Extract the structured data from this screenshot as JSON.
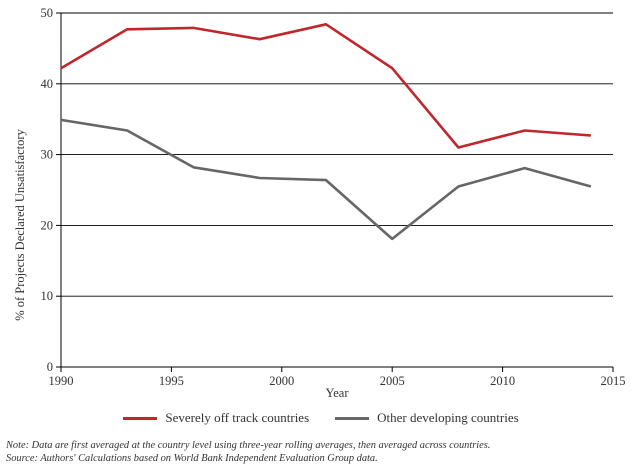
{
  "chart_data": {
    "type": "line",
    "title": "",
    "xlabel": "Year",
    "ylabel": "% of Projects Declared Unsatisfactory",
    "xlim": [
      1990,
      2015
    ],
    "ylim": [
      0,
      50
    ],
    "xticks": [
      1990,
      1995,
      2000,
      2005,
      2010,
      2015
    ],
    "yticks": [
      0,
      10,
      20,
      30,
      40,
      50
    ],
    "grid": "horizontal",
    "legend_position": "bottom",
    "series": [
      {
        "name": "Severely off track countries",
        "color": "#c0272d",
        "x": [
          1990,
          1993,
          1996,
          1999,
          2002,
          2005,
          2008,
          2011,
          2014
        ],
        "values": [
          42.2,
          47.7,
          47.9,
          46.3,
          48.4,
          42.2,
          31.0,
          33.4,
          32.7
        ]
      },
      {
        "name": "Other developing countries",
        "color": "#666666",
        "x": [
          1990,
          1993,
          1996,
          1999,
          2002,
          2005,
          2008,
          2011,
          2014
        ],
        "values": [
          34.9,
          33.4,
          28.2,
          26.7,
          26.4,
          18.1,
          25.5,
          28.1,
          25.5
        ]
      }
    ]
  },
  "notes": {
    "note": "Note: Data are first averaged at the country level using three-year rolling averages, then averaged across countries.",
    "source": "Source: Authors' Calculations based on World Bank Independent Evaluation Group data."
  }
}
